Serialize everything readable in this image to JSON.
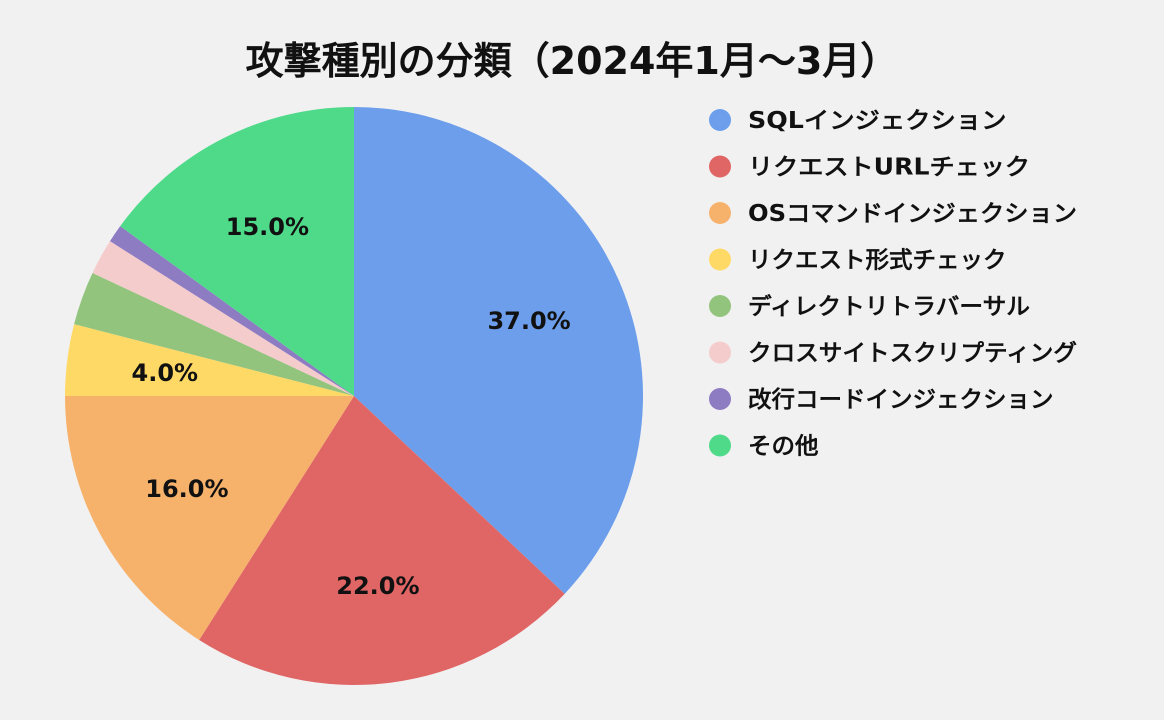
{
  "chart_data": {
    "type": "pie",
    "title": "攻撃種別の分類（2024年1月〜3月）",
    "legend_position": "right",
    "slices": [
      {
        "label": "SQLインジェクション",
        "value": 37.0,
        "color": "#6d9eeb",
        "value_label": "37.0%"
      },
      {
        "label": "リクエストURLチェック",
        "value": 22.0,
        "color": "#e06666",
        "value_label": "22.0%"
      },
      {
        "label": "OSコマンドインジェクション",
        "value": 16.0,
        "color": "#f6b26b",
        "value_label": "16.0%"
      },
      {
        "label": "リクエスト形式チェック",
        "value": 4.0,
        "color": "#ffd966",
        "value_label": "4.0%"
      },
      {
        "label": "ディレクトリトラバーサル",
        "value": 3.0,
        "color": "#93c47d",
        "value_label": ""
      },
      {
        "label": "クロスサイトスクリプティング",
        "value": 2.0,
        "color": "#f4cccc",
        "value_label": ""
      },
      {
        "label": "改行コードインジェクション",
        "value": 1.0,
        "color": "#8e7cc3",
        "value_label": ""
      },
      {
        "label": "その他",
        "value": 15.0,
        "color": "#4fda8a",
        "value_label": "15.0%"
      }
    ]
  }
}
